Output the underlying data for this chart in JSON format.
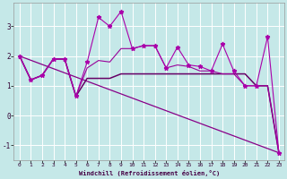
{
  "xlabel": "Windchill (Refroidissement éolien,°C)",
  "bg_color": "#c5e8e8",
  "grid_color": "#ffffff",
  "xlim": [
    -0.5,
    23.5
  ],
  "ylim": [
    -1.5,
    3.8
  ],
  "yticks": [
    -1,
    0,
    1,
    2,
    3
  ],
  "xticks": [
    0,
    1,
    2,
    3,
    4,
    5,
    6,
    7,
    8,
    9,
    10,
    11,
    12,
    13,
    14,
    15,
    16,
    17,
    18,
    19,
    20,
    21,
    22,
    23
  ],
  "line_zigzag_x": [
    0,
    1,
    2,
    3,
    4,
    5,
    6,
    7,
    8,
    9,
    10,
    11,
    12,
    13,
    14,
    15,
    16,
    17,
    18,
    19,
    20,
    21,
    22,
    23
  ],
  "line_zigzag_y": [
    2.0,
    1.2,
    1.35,
    1.9,
    1.9,
    0.65,
    1.8,
    3.3,
    3.0,
    3.5,
    2.25,
    2.35,
    2.35,
    1.6,
    2.3,
    1.7,
    1.65,
    1.5,
    2.4,
    1.5,
    1.0,
    1.0,
    2.65,
    -1.25
  ],
  "line_flat_x": [
    0,
    1,
    2,
    3,
    4,
    5,
    6,
    7,
    8,
    9,
    10,
    11,
    12,
    13,
    14,
    15,
    16,
    17,
    18,
    19,
    20,
    21,
    22,
    23
  ],
  "line_flat_y": [
    2.0,
    1.2,
    1.35,
    1.9,
    1.9,
    0.65,
    1.25,
    1.25,
    1.25,
    1.4,
    1.4,
    1.4,
    1.4,
    1.4,
    1.4,
    1.4,
    1.4,
    1.4,
    1.4,
    1.4,
    1.4,
    1.0,
    1.0,
    -1.25
  ],
  "line_smooth_x": [
    0,
    1,
    2,
    3,
    4,
    5,
    6,
    7,
    8,
    9,
    10,
    11,
    12,
    13,
    14,
    15,
    16,
    17,
    18,
    19,
    20,
    21,
    22,
    23
  ],
  "line_smooth_y": [
    2.0,
    1.2,
    1.35,
    1.9,
    1.9,
    0.65,
    1.6,
    1.85,
    1.8,
    2.25,
    2.25,
    2.35,
    2.35,
    1.6,
    1.7,
    1.65,
    1.5,
    1.5,
    1.4,
    1.4,
    1.0,
    1.0,
    1.0,
    -1.25
  ],
  "line_trend_x": [
    0,
    23
  ],
  "line_trend_y": [
    2.0,
    -1.25
  ],
  "color_zigzag": "#aa00aa",
  "color_flat": "#660066",
  "color_smooth": "#990099",
  "color_trend": "#880088"
}
